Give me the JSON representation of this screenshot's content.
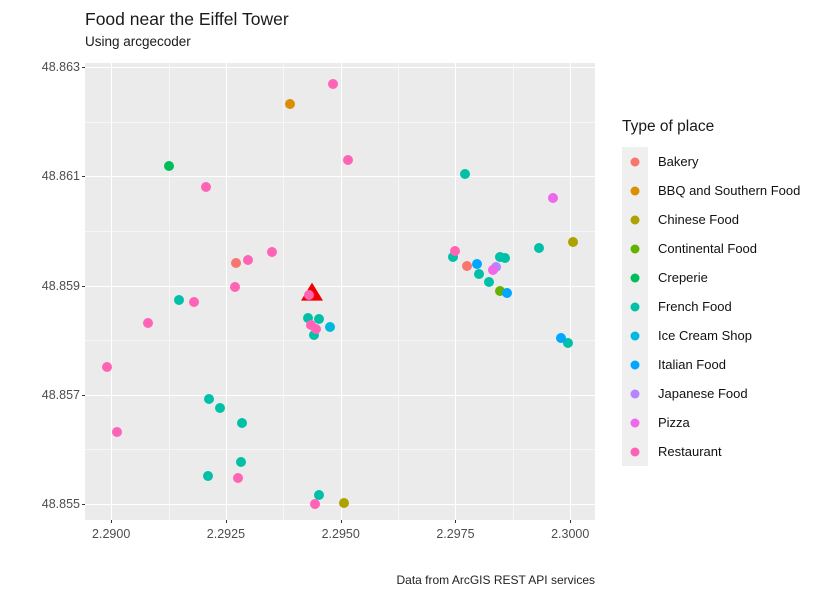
{
  "title": "Food near the Eiffel Tower",
  "subtitle": "Using arcgecoder",
  "caption": "Data from ArcGIS REST API services",
  "panel_color": "#EBEBEB",
  "grid_color": "#FFFFFF",
  "axis_text_color": "#4D4D4D",
  "legend": {
    "title": "Type of place",
    "items": [
      {
        "label": "Bakery",
        "color": "#F8766D"
      },
      {
        "label": "BBQ and Southern Food",
        "color": "#DB8E00"
      },
      {
        "label": "Chinese Food",
        "color": "#AEA200"
      },
      {
        "label": "Continental Food",
        "color": "#64B200"
      },
      {
        "label": "Creperie",
        "color": "#00BD5C"
      },
      {
        "label": "French Food",
        "color": "#00C1A7"
      },
      {
        "label": "Ice Cream Shop",
        "color": "#00BADE"
      },
      {
        "label": "Italian Food",
        "color": "#00A6FF"
      },
      {
        "label": "Japanese Food",
        "color": "#B385FF"
      },
      {
        "label": "Pizza",
        "color": "#EF67EB"
      },
      {
        "label": "Restaurant",
        "color": "#FF63B6"
      }
    ]
  },
  "chart_data": {
    "type": "scatter",
    "title": "Food near the Eiffel Tower",
    "subtitle": "Using arcgecoder",
    "caption": "Data from ArcGIS REST API services",
    "xlabel": "",
    "ylabel": "",
    "legend_position": "right",
    "grid": true,
    "xlim": [
      2.28943,
      2.30054
    ],
    "ylim": [
      48.8547,
      48.86308
    ],
    "x_ticks": {
      "values": [
        2.29,
        2.2925,
        2.295,
        2.2975,
        2.3
      ],
      "labels": [
        "2.2900",
        "2.2925",
        "2.2950",
        "2.2975",
        "2.3000"
      ]
    },
    "y_ticks": {
      "values": [
        48.855,
        48.857,
        48.859,
        48.861,
        48.863
      ],
      "labels": [
        "48.855",
        "48.857",
        "48.859",
        "48.861",
        "48.863"
      ]
    },
    "marker": {
      "name": "eiffel-tower",
      "shape": "triangle",
      "color": "#F00000",
      "lon": 2.29437,
      "lat": 48.85888
    },
    "series": [
      {
        "name": "Bakery",
        "color": "#F8766D",
        "points": [
          [
            2.29272,
            48.85942
          ],
          [
            2.29776,
            48.85936
          ]
        ]
      },
      {
        "name": "BBQ and Southern Food",
        "color": "#DB8E00",
        "points": [
          [
            2.2939,
            48.86233
          ]
        ]
      },
      {
        "name": "Chinese Food",
        "color": "#AEA200",
        "points": [
          [
            2.30006,
            48.8598
          ],
          [
            2.29508,
            48.85502
          ]
        ]
      },
      {
        "name": "Continental Food",
        "color": "#64B200",
        "points": [
          [
            2.29847,
            48.8589
          ]
        ]
      },
      {
        "name": "Creperie",
        "color": "#00BD5C",
        "points": [
          [
            2.29125,
            48.8612
          ]
        ]
      },
      {
        "name": "French Food",
        "color": "#00C1A7",
        "points": [
          [
            2.29771,
            48.86104
          ],
          [
            2.29931,
            48.85968
          ],
          [
            2.29148,
            48.85874
          ],
          [
            2.29744,
            48.85953
          ],
          [
            2.29848,
            48.85953
          ],
          [
            2.29859,
            48.8595
          ],
          [
            2.29802,
            48.85921
          ],
          [
            2.29824,
            48.85907
          ],
          [
            2.29995,
            48.85795
          ],
          [
            2.29429,
            48.85841
          ],
          [
            2.29453,
            48.85838
          ],
          [
            2.29442,
            48.85809
          ],
          [
            2.29214,
            48.85691
          ],
          [
            2.29237,
            48.85676
          ],
          [
            2.29285,
            48.85648
          ],
          [
            2.29283,
            48.85576
          ],
          [
            2.2921,
            48.85551
          ],
          [
            2.29453,
            48.85515
          ]
        ]
      },
      {
        "name": "Ice Cream Shop",
        "color": "#00BADE",
        "points": [
          [
            2.29476,
            48.85823
          ]
        ]
      },
      {
        "name": "Italian Food",
        "color": "#00A6FF",
        "points": [
          [
            2.29797,
            48.8594
          ],
          [
            2.29863,
            48.85887
          ],
          [
            2.2998,
            48.85803
          ]
        ]
      },
      {
        "name": "Japanese Food",
        "color": "#B385FF",
        "points": [
          [
            2.29838,
            48.85934
          ]
        ]
      },
      {
        "name": "Pizza",
        "color": "#EF67EB",
        "points": [
          [
            2.29963,
            48.86061
          ],
          [
            2.29832,
            48.85928
          ]
        ]
      },
      {
        "name": "Restaurant",
        "color": "#FF63B6",
        "points": [
          [
            2.29483,
            48.86269
          ],
          [
            2.29517,
            48.86131
          ],
          [
            2.29207,
            48.86081
          ],
          [
            2.2935,
            48.85962
          ],
          [
            2.29299,
            48.85947
          ],
          [
            2.29269,
            48.85897
          ],
          [
            2.2918,
            48.85869
          ],
          [
            2.29081,
            48.85831
          ],
          [
            2.28991,
            48.85751
          ],
          [
            2.29012,
            48.85632
          ],
          [
            2.29749,
            48.85963
          ],
          [
            2.29431,
            48.85883
          ],
          [
            2.29435,
            48.85828
          ],
          [
            2.29447,
            48.85821
          ],
          [
            2.29276,
            48.85547
          ],
          [
            2.29444,
            48.85499
          ]
        ]
      }
    ]
  }
}
